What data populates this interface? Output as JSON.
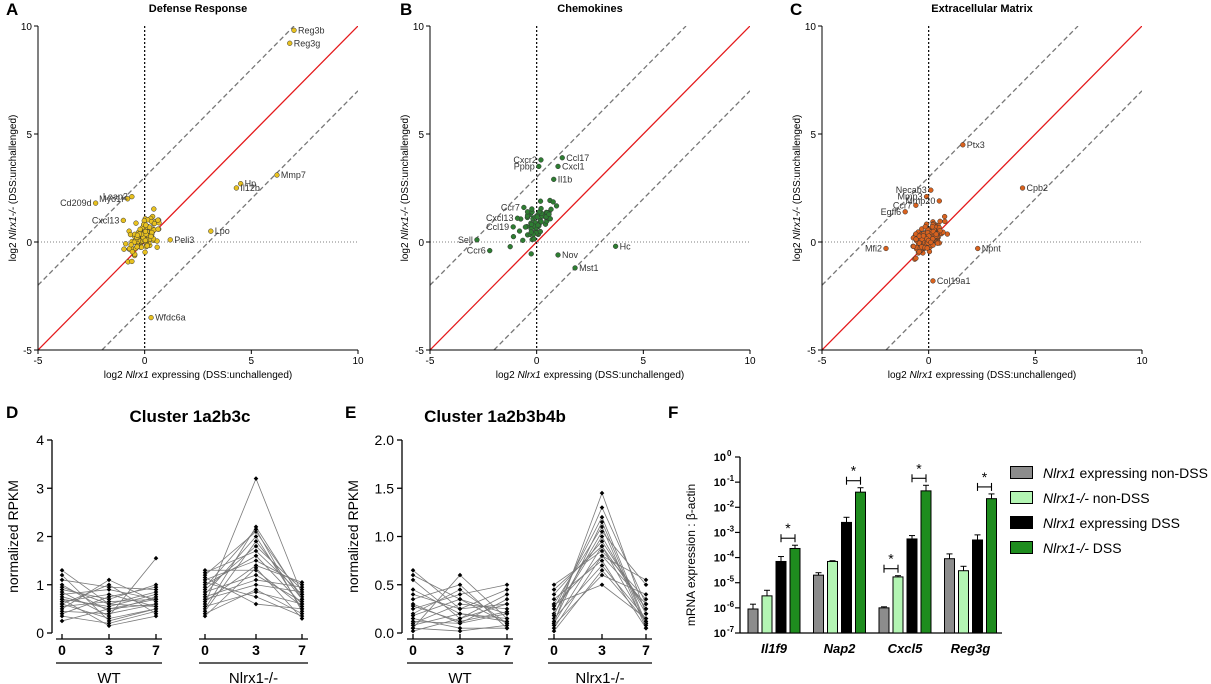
{
  "panel_letters": {
    "A": "A",
    "B": "B",
    "C": "C",
    "D": "D",
    "E": "E",
    "F": "F"
  },
  "chart_data": [
    {
      "id": "A",
      "type": "scatter",
      "title": "Defense Response",
      "xlabel": "log2 Nlrx1 expressing (DSS:unchallenged)",
      "ylabel": "log2 Nlrx1-/- (DSS:unchallenged)",
      "xlim": [
        -5,
        10
      ],
      "ylim": [
        -5,
        10
      ],
      "xticks": [
        -5,
        0,
        5,
        10
      ],
      "yticks": [
        -5,
        0,
        5,
        10
      ],
      "point_color": "#e8c11f",
      "labeled_points": [
        {
          "label": "Reg3b",
          "x": 7.0,
          "y": 9.8
        },
        {
          "label": "Reg3g",
          "x": 6.8,
          "y": 9.2
        },
        {
          "label": "Mmp7",
          "x": 6.2,
          "y": 3.1
        },
        {
          "label": "Hp",
          "x": 4.5,
          "y": 2.7
        },
        {
          "label": "Il12b",
          "x": 4.3,
          "y": 2.5
        },
        {
          "label": "Lpo",
          "x": 3.1,
          "y": 0.5
        },
        {
          "label": "Peli3",
          "x": 1.2,
          "y": 0.1
        },
        {
          "label": "Leap2",
          "x": -0.6,
          "y": 2.1
        },
        {
          "label": "Myo1f",
          "x": -0.8,
          "y": 2.0
        },
        {
          "label": "Cd209d",
          "x": -2.3,
          "y": 1.8
        },
        {
          "label": "Cxcl13",
          "x": -1.0,
          "y": 1.0
        },
        {
          "label": "Wfdc6a",
          "x": 0.3,
          "y": -3.5
        }
      ],
      "cloud": {
        "points": 110,
        "center": [
          0,
          0.3
        ],
        "spread": 0.75,
        "spread_y": 0.9,
        "seed": 3
      }
    },
    {
      "id": "B",
      "type": "scatter",
      "title": "Chemokines",
      "xlabel": "log2 Nlrx1 expressing (DSS:unchallenged)",
      "ylabel": "log2 Nlrx1-/- (DSS:unchallenged)",
      "xlim": [
        -5,
        10
      ],
      "ylim": [
        -5,
        10
      ],
      "xticks": [
        -5,
        0,
        5,
        10
      ],
      "yticks": [
        -5,
        0,
        5,
        10
      ],
      "point_color": "#2e7d32",
      "labeled_points": [
        {
          "label": "Ccl17",
          "x": 1.2,
          "y": 3.9
        },
        {
          "label": "Cxcr2",
          "x": 0.2,
          "y": 3.8
        },
        {
          "label": "Cxcl1",
          "x": 1.0,
          "y": 3.5
        },
        {
          "label": "Ppbp",
          "x": 0.1,
          "y": 3.5
        },
        {
          "label": "Il1b",
          "x": 0.8,
          "y": 2.9
        },
        {
          "label": "Ccr7",
          "x": -0.6,
          "y": 1.6
        },
        {
          "label": "Cxcl13",
          "x": -0.9,
          "y": 1.1
        },
        {
          "label": "Ccl19",
          "x": -1.1,
          "y": 0.7
        },
        {
          "label": "Sell",
          "x": -2.8,
          "y": 0.1
        },
        {
          "label": "Ccr6",
          "x": -2.2,
          "y": -0.4
        },
        {
          "label": "Nov",
          "x": 1.0,
          "y": -0.6
        },
        {
          "label": "Mst1",
          "x": 1.8,
          "y": -1.2
        },
        {
          "label": "Hc",
          "x": 3.7,
          "y": -0.2
        }
      ],
      "cloud": {
        "points": 70,
        "center": [
          0,
          0.9
        ],
        "spread": 0.9,
        "spread_y": 1.2,
        "seed": 11
      }
    },
    {
      "id": "C",
      "type": "scatter",
      "title": "Extracellular Matrix",
      "xlabel": "log2 Nlrx1 expressing (DSS:unchallenged)",
      "ylabel": "log2 Nlrx1-/- (DSS:unchallenged)",
      "xlim": [
        -5,
        10
      ],
      "ylim": [
        -5,
        10
      ],
      "xticks": [
        -5,
        0,
        5,
        10
      ],
      "yticks": [
        -5,
        0,
        5,
        10
      ],
      "point_color": "#d9621e",
      "labeled_points": [
        {
          "label": "Ptx3",
          "x": 1.6,
          "y": 4.5
        },
        {
          "label": "Cpb2",
          "x": 4.4,
          "y": 2.5
        },
        {
          "label": "Necab3",
          "x": 0.1,
          "y": 2.4
        },
        {
          "label": "Mmp3",
          "x": -0.1,
          "y": 2.1
        },
        {
          "label": "Mmp20",
          "x": 0.5,
          "y": 1.9
        },
        {
          "label": "Ccr7",
          "x": -0.6,
          "y": 1.7
        },
        {
          "label": "Egfl6",
          "x": -1.1,
          "y": 1.4
        },
        {
          "label": "Mfi2",
          "x": -2.0,
          "y": -0.3
        },
        {
          "label": "Npnt",
          "x": 2.3,
          "y": -0.3
        },
        {
          "label": "Col19a1",
          "x": 0.2,
          "y": -1.8
        }
      ],
      "cloud": {
        "points": 190,
        "center": [
          0,
          0.2
        ],
        "spread": 0.7,
        "spread_y": 0.7,
        "seed": 23
      }
    },
    {
      "id": "D",
      "type": "line",
      "title": "Cluster 1a2b3c",
      "ylabel": "normalized RPKM",
      "ylim": [
        0,
        4
      ],
      "yticks": [
        0,
        1,
        2,
        3,
        4
      ],
      "groups": [
        {
          "name": "WT",
          "timepoints": [
            "0",
            "3",
            "7"
          ]
        },
        {
          "name": "Nlrx1-/-",
          "timepoints": [
            "0",
            "3",
            "7"
          ]
        }
      ],
      "series": {
        "WT": [
          [
            0.45,
            0.4,
            0.6
          ],
          [
            0.55,
            0.65,
            0.7
          ],
          [
            0.6,
            0.3,
            0.5
          ],
          [
            0.65,
            0.8,
            0.55
          ],
          [
            0.7,
            0.55,
            0.8
          ],
          [
            0.75,
            0.5,
            0.6
          ],
          [
            0.8,
            0.9,
            0.7
          ],
          [
            0.9,
            0.7,
            1.0
          ],
          [
            1.0,
            0.45,
            0.75
          ],
          [
            1.1,
            0.95,
            0.9
          ],
          [
            1.3,
            0.6,
            0.85
          ],
          [
            0.35,
            0.2,
            0.45
          ],
          [
            0.5,
            1.1,
            0.65
          ],
          [
            0.85,
            0.35,
            1.55
          ],
          [
            1.2,
            0.25,
            0.5
          ],
          [
            0.4,
            0.75,
            0.95
          ],
          [
            0.6,
            1.0,
            0.4
          ],
          [
            0.95,
            0.6,
            0.55
          ],
          [
            0.25,
            0.5,
            0.7
          ],
          [
            0.7,
            0.15,
            0.35
          ]
        ],
        "Nlrx1-/-": [
          [
            0.5,
            2.2,
            0.7
          ],
          [
            0.6,
            3.2,
            0.8
          ],
          [
            0.8,
            2.0,
            0.5
          ],
          [
            0.9,
            1.8,
            0.9
          ],
          [
            1.0,
            1.6,
            0.6
          ],
          [
            1.1,
            1.5,
            1.0
          ],
          [
            1.2,
            2.1,
            0.75
          ],
          [
            1.3,
            1.3,
            0.55
          ],
          [
            0.7,
            1.0,
            0.85
          ],
          [
            0.4,
            0.9,
            0.4
          ],
          [
            0.85,
            1.2,
            0.65
          ],
          [
            1.05,
            0.75,
            0.35
          ],
          [
            0.65,
            1.4,
            1.05
          ],
          [
            0.95,
            2.15,
            0.45
          ],
          [
            0.55,
            0.85,
            0.6
          ],
          [
            1.25,
            1.7,
            0.8
          ],
          [
            0.75,
            1.1,
            0.95
          ],
          [
            0.45,
            1.9,
            0.7
          ],
          [
            1.15,
            0.6,
            0.5
          ],
          [
            0.35,
            1.35,
            0.3
          ]
        ]
      }
    },
    {
      "id": "E",
      "type": "line",
      "title": "Cluster 1a2b3b4b",
      "ylabel": "normalized RPKM",
      "ylim": [
        0,
        2
      ],
      "yticks": [
        0.0,
        0.5,
        1.0,
        1.5,
        2.0
      ],
      "groups": [
        {
          "name": "WT",
          "timepoints": [
            "0",
            "3",
            "7"
          ]
        },
        {
          "name": "Nlrx1-/-",
          "timepoints": [
            "0",
            "3",
            "7"
          ]
        }
      ],
      "series": {
        "WT": [
          [
            0.6,
            0.35,
            0.2
          ],
          [
            0.55,
            0.15,
            0.4
          ],
          [
            0.2,
            0.45,
            0.1
          ],
          [
            0.1,
            0.3,
            0.25
          ],
          [
            0.05,
            0.6,
            0.15
          ],
          [
            0.3,
            0.1,
            0.35
          ],
          [
            0.15,
            0.05,
            0.05
          ],
          [
            0.4,
            0.25,
            0.3
          ],
          [
            0.25,
            0.4,
            0.5
          ],
          [
            0.08,
            0.2,
            0.12
          ],
          [
            0.65,
            0.25,
            0.45
          ],
          [
            0.12,
            0.1,
            0.2
          ],
          [
            0.35,
            0.5,
            0.05
          ],
          [
            0.02,
            0.15,
            0.3
          ],
          [
            0.18,
            0.35,
            0.1
          ],
          [
            0.45,
            0.2,
            0.15
          ],
          [
            0.05,
            0.02,
            0.08
          ],
          [
            0.28,
            0.12,
            0.22
          ]
        ],
        "Nlrx1-/-": [
          [
            0.1,
            0.9,
            0.1
          ],
          [
            0.2,
            1.0,
            0.2
          ],
          [
            0.3,
            1.1,
            0.05
          ],
          [
            0.05,
            0.8,
            0.3
          ],
          [
            0.15,
            0.7,
            0.15
          ],
          [
            0.4,
            0.95,
            0.25
          ],
          [
            0.25,
            1.2,
            0.1
          ],
          [
            0.1,
            1.45,
            0.2
          ],
          [
            0.5,
            0.85,
            0.35
          ],
          [
            0.35,
            0.75,
            0.05
          ],
          [
            0.08,
            0.6,
            0.4
          ],
          [
            0.2,
            1.05,
            0.5
          ],
          [
            0.3,
            0.5,
            0.15
          ],
          [
            0.45,
            0.9,
            0.25
          ],
          [
            0.12,
            1.15,
            0.08
          ],
          [
            0.02,
            0.65,
            0.12
          ],
          [
            0.28,
            0.8,
            0.55
          ],
          [
            0.18,
            1.3,
            0.3
          ]
        ]
      }
    },
    {
      "id": "F",
      "type": "bar",
      "ylabel": "mRNA expression : β-actin",
      "yscale": "log",
      "ylim_exp": [
        -7,
        0
      ],
      "ytick_labels": [
        "10",
        "10",
        "10",
        "10",
        "10",
        "10",
        "10",
        "10"
      ],
      "ytick_exponents": [
        "-7",
        "-6",
        "-5",
        "-4",
        "-3",
        "-2",
        "-1",
        "0"
      ],
      "categories": [
        "Il1f9",
        "Nap2",
        "Cxcl5",
        "Reg3g"
      ],
      "series": [
        {
          "name": "Nlrx1 expressing non-DSS",
          "color": "#8c8c8c",
          "values": [
            9e-07,
            2e-05,
            1e-06,
            9e-05
          ],
          "errors": [
            5e-07,
            5e-06,
            1e-07,
            5e-05
          ]
        },
        {
          "name": "Nlrx1-/- non-DSS",
          "color": "#b3f5b3",
          "values": [
            3e-06,
            7e-05,
            1.7e-05,
            3e-05
          ],
          "errors": [
            2e-06,
            5e-06,
            2e-06,
            1.5e-05
          ]
        },
        {
          "name": "Nlrx1 expressing DSS",
          "color": "#000000",
          "values": [
            7e-05,
            0.0025,
            0.00055,
            0.0005
          ],
          "errors": [
            4e-05,
            0.0015,
            0.0002,
            0.0003
          ]
        },
        {
          "name": "Nlrx1-/- DSS",
          "color": "#1e8c1e",
          "values": [
            0.00023,
            0.04,
            0.045,
            0.022
          ],
          "errors": [
            8e-05,
            0.02,
            0.03,
            0.012
          ]
        }
      ],
      "significance": [
        {
          "category": "Il1f9",
          "between": [
            2,
            3
          ],
          "mark": "*"
        },
        {
          "category": "Nap2",
          "between": [
            2,
            3
          ],
          "mark": "*"
        },
        {
          "category": "Cxcl5",
          "between": [
            0,
            1
          ],
          "mark": "*"
        },
        {
          "category": "Cxcl5",
          "between": [
            2,
            3
          ],
          "mark": "*"
        },
        {
          "category": "Reg3g",
          "between": [
            2,
            3
          ],
          "mark": "*"
        }
      ]
    }
  ],
  "legend": [
    {
      "gene": "Nlrx1",
      "rest": " expressing non-DSS",
      "color": "#8c8c8c"
    },
    {
      "gene": "Nlrx1-/-",
      "rest": " non-DSS",
      "color": "#b3f5b3"
    },
    {
      "gene": "Nlrx1",
      "rest": " expressing DSS",
      "color": "#000000"
    },
    {
      "gene": "Nlrx1-/-",
      "rest": " DSS",
      "color": "#1e8c1e"
    }
  ]
}
